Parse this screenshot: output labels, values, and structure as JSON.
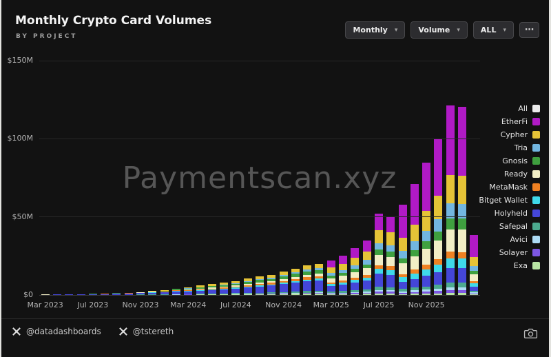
{
  "header": {
    "title": "Monthly Crypto Card Volumes",
    "subtitle": "BY PROJECT",
    "controls": [
      {
        "label": "Monthly",
        "caret": "▾"
      },
      {
        "label": "Volume",
        "caret": "▾"
      },
      {
        "label": "ALL",
        "caret": "▾"
      }
    ],
    "more_label": "⋯"
  },
  "watermark": "Paymentscan.xyz",
  "footer": {
    "handles": [
      {
        "icon": "x-logo",
        "text": "@datadashboards"
      },
      {
        "icon": "x-logo",
        "text": "@tstereth"
      }
    ],
    "camera_icon": "camera"
  },
  "chart_data": {
    "type": "bar",
    "stacked": true,
    "title": "Monthly Crypto Card Volumes",
    "subtitle": "BY PROJECT",
    "unit": "USD millions",
    "grid": true,
    "legend_position": "right",
    "ylim": [
      0,
      150
    ],
    "y_ticks": [
      "$0",
      "$50M",
      "$100M",
      "$150M"
    ],
    "x_tick_labels": [
      "Mar 2023",
      "Jul 2023",
      "Nov 2023",
      "Mar 2024",
      "Jul 2024",
      "Nov 2024",
      "Mar 2025",
      "Jul 2025",
      "Nov 2025"
    ],
    "x_tick_every": 4,
    "months": [
      "2023-03",
      "2023-04",
      "2023-05",
      "2023-06",
      "2023-07",
      "2023-08",
      "2023-09",
      "2023-10",
      "2023-11",
      "2023-12",
      "2024-01",
      "2024-02",
      "2024-03",
      "2024-04",
      "2024-05",
      "2024-06",
      "2024-07",
      "2024-08",
      "2024-09",
      "2024-10",
      "2024-11",
      "2024-12",
      "2025-01",
      "2025-02",
      "2025-03",
      "2025-04",
      "2025-05",
      "2025-06",
      "2025-07",
      "2025-08",
      "2025-09",
      "2025-10",
      "2025-11",
      "2025-12",
      "2026-01",
      "2026-02",
      "2026-03"
    ],
    "totals_musd": [
      0.3,
      0.4,
      0.5,
      0.6,
      0.8,
      1.0,
      1.2,
      1.5,
      2.0,
      2.5,
      3.0,
      4.0,
      5.0,
      6.0,
      7.0,
      8.0,
      9.0,
      10.5,
      12,
      13,
      15,
      17,
      19,
      20,
      22,
      25,
      30,
      35,
      52,
      50,
      57,
      70,
      84,
      99,
      120,
      119,
      38
    ],
    "legend": [
      {
        "name": "All",
        "color": "#ebebeb"
      },
      {
        "name": "EtherFi",
        "color": "#b01ac6"
      },
      {
        "name": "Cypher",
        "color": "#e5c337"
      },
      {
        "name": "Tria",
        "color": "#72b6e0"
      },
      {
        "name": "Gnosis",
        "color": "#3fa03f"
      },
      {
        "name": "Ready",
        "color": "#f2eec6"
      },
      {
        "name": "MetaMask",
        "color": "#ef8122"
      },
      {
        "name": "Bitget Wallet",
        "color": "#3fd9ea"
      },
      {
        "name": "Holyheld",
        "color": "#4446d8"
      },
      {
        "name": "Safepal",
        "color": "#4caa8f"
      },
      {
        "name": "Avici",
        "color": "#aedcf5"
      },
      {
        "name": "Solayer",
        "color": "#7d57e3"
      },
      {
        "name": "Exa",
        "color": "#b8e4a3"
      }
    ],
    "stack_order_bottom_to_top": [
      "Exa",
      "Solayer",
      "Avici",
      "Safepal",
      "Holyheld",
      "Bitget Wallet",
      "MetaMask",
      "Ready",
      "Gnosis",
      "Tria",
      "Cypher",
      "EtherFi"
    ],
    "series": [
      {
        "name": "EtherFi",
        "color": "#b01ac6",
        "values": [
          0,
          0,
          0,
          0,
          0,
          0,
          0,
          0,
          0,
          0,
          0,
          0,
          0,
          0,
          0,
          0,
          0,
          0,
          0,
          0,
          0,
          0,
          0,
          0,
          4.4,
          5,
          6,
          7,
          10.4,
          10,
          21.1,
          25.9,
          31.1,
          36.6,
          44.4,
          44,
          14.1
        ]
      },
      {
        "name": "Cypher",
        "color": "#e5c337",
        "values": [
          0.02,
          0.02,
          0.03,
          0.03,
          0.04,
          0.05,
          0.06,
          0.08,
          0.1,
          0.13,
          0.15,
          0.2,
          0.75,
          0.9,
          1.05,
          1.2,
          1.35,
          1.58,
          1.8,
          1.95,
          2.25,
          2.55,
          2.85,
          3,
          3.5,
          4,
          4.8,
          5.6,
          8.3,
          8,
          8.6,
          10.5,
          12.6,
          14.9,
          18,
          17.9,
          5.7
        ]
      },
      {
        "name": "Tria",
        "color": "#72b6e0",
        "values": [
          0,
          0,
          0,
          0,
          0,
          0,
          0,
          0,
          0,
          0,
          0,
          0,
          0.25,
          0.3,
          0.35,
          0.4,
          0.45,
          0.53,
          0.6,
          0.65,
          0.75,
          0.85,
          0.95,
          1,
          1.8,
          2,
          2.4,
          2.8,
          4.2,
          4,
          4.6,
          5.6,
          6.7,
          7.9,
          9.6,
          9.5,
          3
        ]
      },
      {
        "name": "Gnosis",
        "color": "#3fa03f",
        "values": [
          0.05,
          0.06,
          0.08,
          0.09,
          0.12,
          0.15,
          0.18,
          0.23,
          0.3,
          0.38,
          0.45,
          0.6,
          0.6,
          0.72,
          0.84,
          0.96,
          1.08,
          1.26,
          1.44,
          1.56,
          1.8,
          2.04,
          2.28,
          2.4,
          1.5,
          1.75,
          2.1,
          2.45,
          3.6,
          3.5,
          3.4,
          4.2,
          5,
          5.9,
          7.2,
          7.1,
          2.3
        ]
      },
      {
        "name": "Ready",
        "color": "#f2eec6",
        "values": [
          0.02,
          0.02,
          0.03,
          0.03,
          0.04,
          0.05,
          0.06,
          0.08,
          0.1,
          0.13,
          0.15,
          0.2,
          0.4,
          0.48,
          0.56,
          0.64,
          0.72,
          0.84,
          0.96,
          1.04,
          1.2,
          1.36,
          1.52,
          1.6,
          2.6,
          3,
          3.6,
          4.2,
          6.2,
          6,
          6.8,
          8.4,
          10.1,
          11.9,
          14.4,
          14.3,
          4.6
        ]
      },
      {
        "name": "MetaMask",
        "color": "#ef8122",
        "values": [
          0.03,
          0.04,
          0.05,
          0.06,
          0.08,
          0.1,
          0.12,
          0.15,
          0.2,
          0.25,
          0.3,
          0.4,
          0.4,
          0.48,
          0.56,
          0.64,
          0.72,
          0.84,
          0.96,
          1.04,
          1.2,
          1.36,
          1.52,
          1.6,
          1.1,
          1.25,
          1.5,
          1.75,
          2.6,
          2.5,
          2,
          2.5,
          2.9,
          3.5,
          4.2,
          4.2,
          1.3
        ]
      },
      {
        "name": "Bitget Wallet",
        "color": "#3fd9ea",
        "values": [
          0.02,
          0.02,
          0.03,
          0.03,
          0.04,
          0.05,
          0.06,
          0.08,
          0.1,
          0.13,
          0.15,
          0.2,
          0.3,
          0.36,
          0.42,
          0.48,
          0.54,
          0.63,
          0.72,
          0.78,
          0.9,
          1.02,
          1.14,
          1.2,
          1.3,
          1.5,
          1.8,
          2.1,
          3.1,
          3,
          2.9,
          3.5,
          4.2,
          5,
          6,
          6,
          1.9
        ]
      },
      {
        "name": "Holyheld",
        "color": "#4446d8",
        "values": [
          0.14,
          0.18,
          0.23,
          0.27,
          0.36,
          0.45,
          0.54,
          0.68,
          0.9,
          1.13,
          1.35,
          1.8,
          1.65,
          1.98,
          2.31,
          2.64,
          2.97,
          3.47,
          3.96,
          4.29,
          4.95,
          5.61,
          6.27,
          6.6,
          3.5,
          4,
          4.8,
          5.6,
          8.3,
          8,
          4.6,
          5.6,
          6.7,
          7.9,
          9.6,
          9.5,
          3
        ]
      },
      {
        "name": "Safepal",
        "color": "#4caa8f",
        "values": [
          0.02,
          0.03,
          0.04,
          0.05,
          0.06,
          0.08,
          0.1,
          0.12,
          0.16,
          0.2,
          0.24,
          0.32,
          0.25,
          0.3,
          0.35,
          0.4,
          0.45,
          0.53,
          0.6,
          0.65,
          0.75,
          0.85,
          0.95,
          1,
          0.9,
          1,
          1.2,
          1.4,
          2.1,
          2,
          1.4,
          1.8,
          2.1,
          2.5,
          3,
          3,
          0.9
        ]
      },
      {
        "name": "Avici",
        "color": "#aedcf5",
        "values": [
          0.01,
          0.01,
          0.01,
          0.01,
          0.02,
          0.02,
          0.02,
          0.03,
          0.04,
          0.05,
          0.06,
          0.08,
          0.1,
          0.12,
          0.14,
          0.16,
          0.18,
          0.21,
          0.24,
          0.26,
          0.3,
          0.34,
          0.38,
          0.4,
          0.44,
          0.5,
          0.6,
          0.7,
          1.04,
          1,
          0.9,
          1.1,
          1.3,
          1.5,
          1.8,
          1.8,
          0.6
        ]
      },
      {
        "name": "Solayer",
        "color": "#7d57e3",
        "values": [
          0,
          0,
          0,
          0,
          0,
          0,
          0,
          0,
          0,
          0,
          0,
          0,
          0.1,
          0.12,
          0.14,
          0.16,
          0.18,
          0.21,
          0.24,
          0.26,
          0.3,
          0.34,
          0.38,
          0.4,
          0.44,
          0.5,
          0.6,
          0.7,
          1.04,
          1,
          0.9,
          1.1,
          1.3,
          1.5,
          1.8,
          1.8,
          0.6
        ]
      },
      {
        "name": "Exa",
        "color": "#b8e4a3",
        "values": [
          0.02,
          0.02,
          0.03,
          0.03,
          0.04,
          0.05,
          0.06,
          0.08,
          0.1,
          0.13,
          0.15,
          0.2,
          0.2,
          0.24,
          0.28,
          0.32,
          0.36,
          0.42,
          0.48,
          0.52,
          0.6,
          0.68,
          0.76,
          0.8,
          0.44,
          0.5,
          0.6,
          0.7,
          1.04,
          1,
          0.6,
          0.7,
          0.8,
          1,
          1.2,
          1.2,
          0.4
        ]
      }
    ]
  }
}
